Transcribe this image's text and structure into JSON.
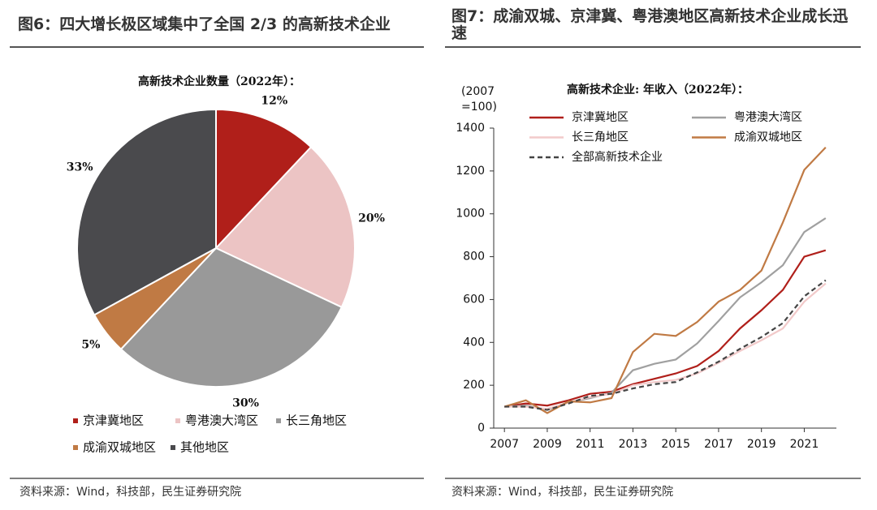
{
  "chart_data": [
    {
      "type": "pie",
      "title": "图6：四大增长极区域集中了全国 2/3 的高新技术企业",
      "subtitle": "高新技术企业数量（2022年）：",
      "categories": [
        "京津冀地区",
        "粤港澳大湾区",
        "长三角地区",
        "成渝双城地区",
        "其他地区"
      ],
      "values": [
        12,
        20,
        30,
        5,
        33
      ],
      "value_labels": [
        "12%",
        "20%",
        "30%",
        "5%",
        "33%"
      ],
      "colors": [
        "#b01f1a",
        "#ecc4c4",
        "#999999",
        "#c07a44",
        "#4a4a4d"
      ],
      "source": "资料来源：Wind，科技部，民生证券研究院"
    },
    {
      "type": "line",
      "title": "图7：成渝双城、京津冀、粤港澳地区高新技术企业成长迅速",
      "subtitle": "高新技术企业: 年收入（2022年）：",
      "y_label": [
        "(2007",
        "=100)"
      ],
      "x": [
        2007,
        2008,
        2009,
        2010,
        2011,
        2012,
        2013,
        2014,
        2015,
        2016,
        2017,
        2018,
        2019,
        2020,
        2021,
        2022
      ],
      "xlim": [
        2006.5,
        2022.5
      ],
      "xticks": [
        2007,
        2009,
        2011,
        2013,
        2015,
        2017,
        2019,
        2021
      ],
      "ylim": [
        0,
        1400
      ],
      "yticks": [
        0,
        200,
        400,
        600,
        800,
        1000,
        1200,
        1400
      ],
      "series": [
        {
          "name": "京津冀地区",
          "color": "#b01f1a",
          "dashed": false,
          "values": [
            100,
            115,
            105,
            130,
            160,
            170,
            205,
            230,
            255,
            290,
            360,
            465,
            550,
            645,
            800,
            830
          ]
        },
        {
          "name": "粤港澳大湾区",
          "color": "#a0a0a0",
          "dashed": false,
          "values": [
            100,
            105,
            85,
            120,
            140,
            165,
            270,
            300,
            320,
            395,
            500,
            610,
            680,
            760,
            915,
            980
          ]
        },
        {
          "name": "长三角地区",
          "color": "#f2caca",
          "dashed": false,
          "values": [
            100,
            100,
            90,
            120,
            145,
            160,
            200,
            215,
            225,
            255,
            305,
            360,
            410,
            465,
            590,
            675
          ]
        },
        {
          "name": "成渝双城地区",
          "color": "#c07a44",
          "dashed": false,
          "values": [
            100,
            130,
            70,
            125,
            120,
            140,
            355,
            440,
            430,
            495,
            590,
            645,
            735,
            960,
            1205,
            1310
          ]
        },
        {
          "name": "全部高新技术企业",
          "color": "#444444",
          "dashed": true,
          "values": [
            100,
            100,
            85,
            115,
            150,
            160,
            185,
            205,
            215,
            260,
            310,
            370,
            425,
            490,
            615,
            690
          ]
        }
      ],
      "source": "资料来源：Wind，科技部，民生证券研究院"
    }
  ]
}
